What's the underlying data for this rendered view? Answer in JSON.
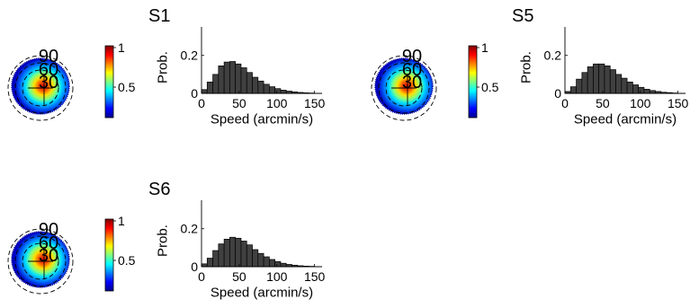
{
  "colors": {
    "bar_fill": "#404040",
    "bar_edge": "#000000",
    "axis": "#000000",
    "colormap": [
      "#00008f",
      "#0000ff",
      "#0080ff",
      "#00ffff",
      "#80ff80",
      "#ffff00",
      "#ff8000",
      "#ff0000",
      "#800000"
    ]
  },
  "colorbar": {
    "ticks": [
      "1",
      "0.5"
    ]
  },
  "polar_labels": [
    "90",
    "60",
    "30"
  ],
  "chart_data": [
    {
      "panel": "S1",
      "type": "bar",
      "title": "S1",
      "xlabel": "Speed (arcmin/s)",
      "ylabel": "Prob.",
      "xlim": [
        0,
        160
      ],
      "ylim": [
        0,
        0.35
      ],
      "xticks": [
        "0",
        "50",
        "100",
        "150"
      ],
      "yticks": [
        "0",
        "0.2"
      ],
      "bin_width": 7.5,
      "x": [
        3.75,
        11.25,
        18.75,
        26.25,
        33.75,
        41.25,
        48.75,
        56.25,
        63.75,
        71.25,
        78.75,
        86.25,
        93.75,
        101.25,
        108.75,
        116.25,
        123.75,
        131.25,
        138.75,
        146.25
      ],
      "values": [
        0.02,
        0.06,
        0.1,
        0.145,
        0.165,
        0.168,
        0.155,
        0.135,
        0.11,
        0.085,
        0.065,
        0.048,
        0.035,
        0.025,
        0.017,
        0.012,
        0.008,
        0.005,
        0.003,
        0.002
      ]
    },
    {
      "panel": "S5",
      "type": "bar",
      "title": "S5",
      "xlabel": "Speed (arcmin/s)",
      "ylabel": "Prob.",
      "xlim": [
        0,
        160
      ],
      "ylim": [
        0,
        0.35
      ],
      "xticks": [
        "0",
        "50",
        "100",
        "150"
      ],
      "yticks": [
        "0",
        "0.2"
      ],
      "bin_width": 7.5,
      "x": [
        3.75,
        11.25,
        18.75,
        26.25,
        33.75,
        41.25,
        48.75,
        56.25,
        63.75,
        71.25,
        78.75,
        86.25,
        93.75,
        101.25,
        108.75,
        116.25,
        123.75,
        131.25,
        138.75,
        146.25
      ],
      "values": [
        0.01,
        0.035,
        0.075,
        0.11,
        0.14,
        0.155,
        0.155,
        0.145,
        0.125,
        0.1,
        0.08,
        0.06,
        0.045,
        0.032,
        0.022,
        0.015,
        0.01,
        0.006,
        0.004,
        0.002
      ]
    },
    {
      "panel": "S6",
      "type": "bar",
      "title": "S6",
      "xlabel": "Speed (arcmin/s)",
      "ylabel": "Prob.",
      "xlim": [
        0,
        160
      ],
      "ylim": [
        0,
        0.35
      ],
      "xticks": [
        "0",
        "50",
        "100",
        "150"
      ],
      "yticks": [
        "0",
        "0.2"
      ],
      "bin_width": 7.5,
      "x": [
        3.75,
        11.25,
        18.75,
        26.25,
        33.75,
        41.25,
        48.75,
        56.25,
        63.75,
        71.25,
        78.75,
        86.25,
        93.75,
        101.25,
        108.75,
        116.25,
        123.75,
        131.25,
        138.75,
        146.25
      ],
      "values": [
        0.015,
        0.045,
        0.085,
        0.12,
        0.145,
        0.155,
        0.15,
        0.135,
        0.115,
        0.09,
        0.07,
        0.052,
        0.038,
        0.027,
        0.018,
        0.012,
        0.008,
        0.005,
        0.003,
        0.002
      ]
    }
  ]
}
